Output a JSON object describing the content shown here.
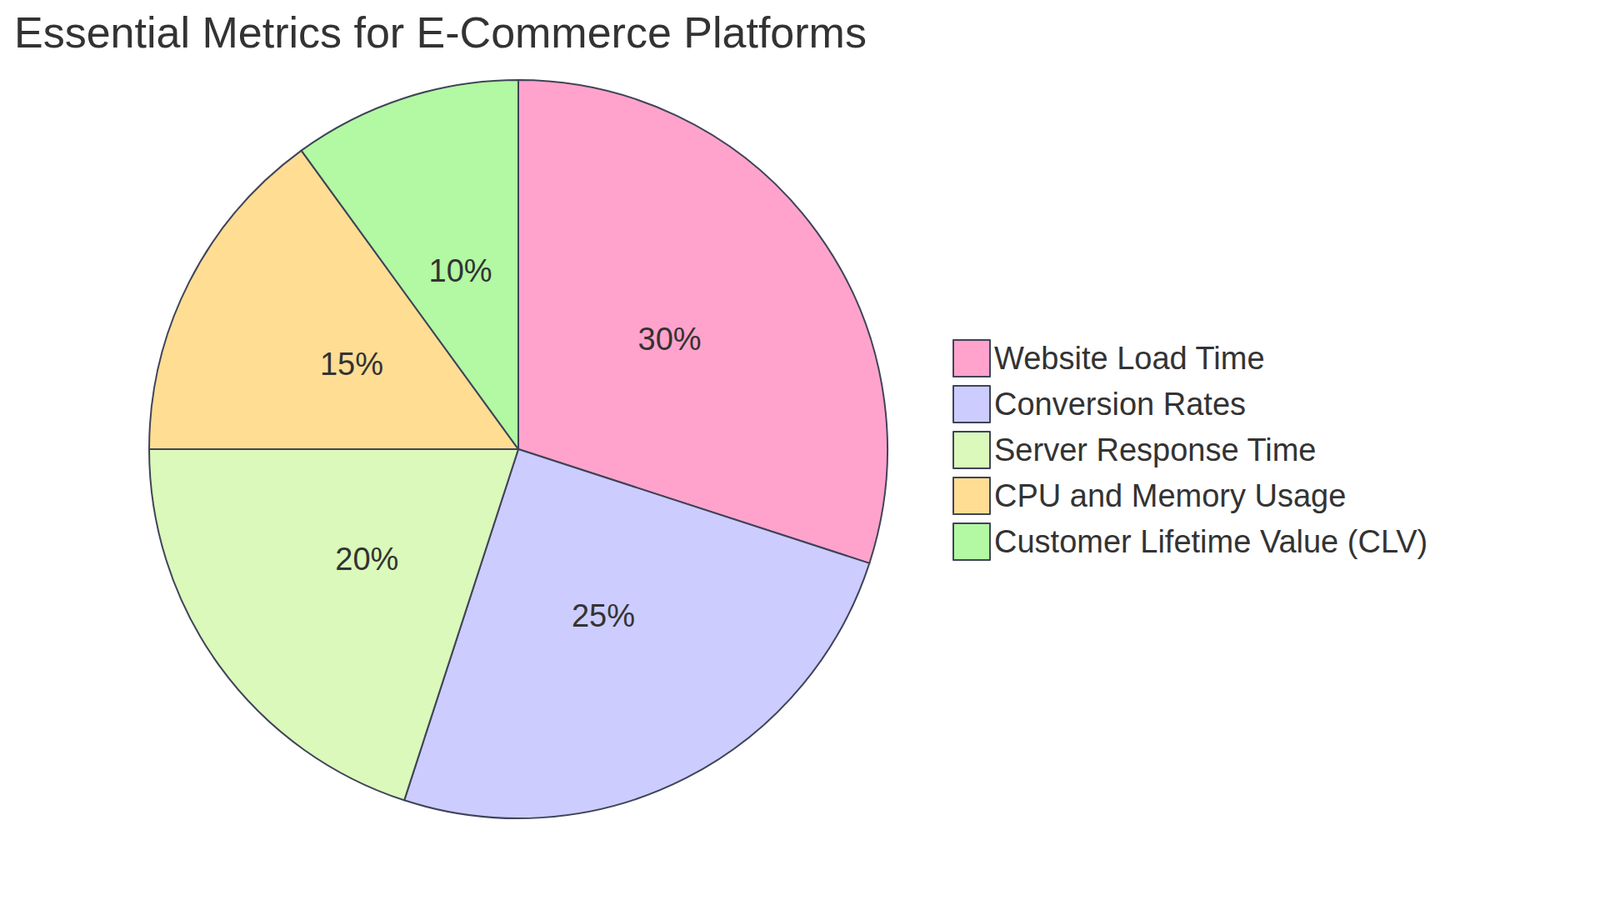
{
  "chart_data": {
    "type": "pie",
    "title": "Essential Metrics for E-Commerce Platforms",
    "categories": [
      "Website Load Time",
      "Conversion Rates",
      "Server Response Time",
      "CPU and Memory Usage",
      "Customer Lifetime Value (CLV)"
    ],
    "values": [
      30,
      25,
      20,
      15,
      10
    ],
    "value_labels": [
      "30%",
      "25%",
      "20%",
      "15%",
      "10%"
    ],
    "colors": [
      "#FFA3CC",
      "#CCCCFF",
      "#DAF9BA",
      "#FFDD93",
      "#B3F8A3"
    ],
    "data_labels": true,
    "legend": "right"
  }
}
